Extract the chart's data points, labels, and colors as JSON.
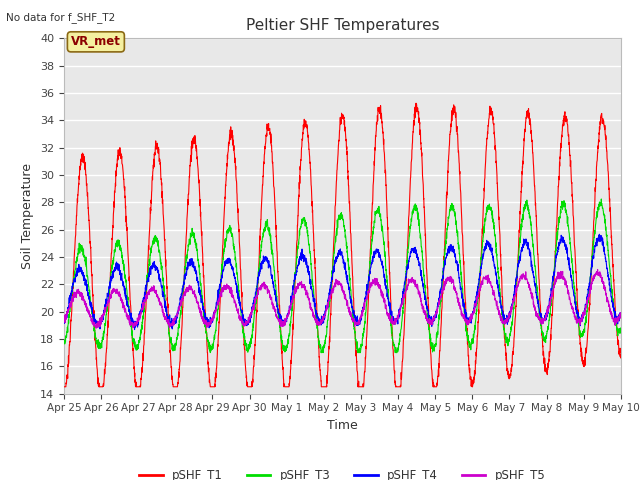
{
  "title": "Peltier SHF Temperatures",
  "no_data_label": "No data for f_SHF_T2",
  "vr_label": "VR_met",
  "xlabel": "Time",
  "ylabel": "Soil Temperature",
  "ylim": [
    14,
    40
  ],
  "yticks": [
    14,
    16,
    18,
    20,
    22,
    24,
    26,
    28,
    30,
    32,
    34,
    36,
    38,
    40
  ],
  "x_tick_labels": [
    "Apr 25",
    "Apr 26",
    "Apr 27",
    "Apr 28",
    "Apr 29",
    "Apr 30",
    "May 1",
    "May 2",
    "May 3",
    "May 4",
    "May 5",
    "May 6",
    "May 7",
    "May 8",
    "May 9",
    "May 10"
  ],
  "colors": {
    "T1": "#ff0000",
    "T3": "#00dd00",
    "T4": "#0000ff",
    "T5": "#cc00cc"
  },
  "legend": [
    "pSHF_T1",
    "pSHF_T3",
    "pSHF_T4",
    "pSHF_T5"
  ],
  "fig_bg": "#ffffff",
  "plot_bg": "#e8e8e8",
  "grid_color": "#ffffff"
}
